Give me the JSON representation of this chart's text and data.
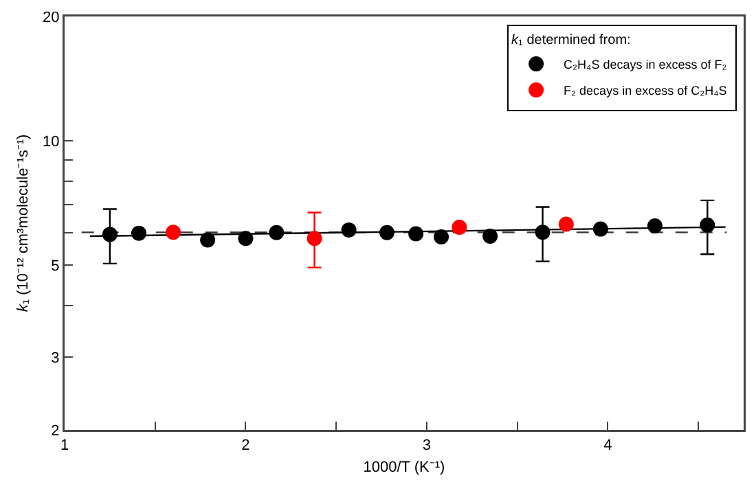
{
  "chart_data": {
    "type": "scatter",
    "xlabel": "1000/T (K⁻¹)",
    "ylabel": "k₁ (10⁻¹² cm³molecule⁻¹s⁻¹)",
    "legend_title": "k₁ determined from:",
    "legend": "top right",
    "marker": "circle",
    "grid": false,
    "log": "y",
    "xlim": [
      1,
      4.75
    ],
    "xticks": [
      1,
      {
        "value": 1.5,
        "label": null
      },
      2,
      {
        "value": 2.5,
        "label": null
      },
      3,
      {
        "value": 3.5,
        "label": null
      },
      4,
      {
        "value": 4.5,
        "label": null
      }
    ],
    "ylim": [
      2,
      20
    ],
    "yticks": [
      2,
      3,
      {
        "value": 4,
        "label": null
      },
      5,
      {
        "value": 6,
        "label": null
      },
      {
        "value": 7,
        "label": null
      },
      {
        "value": 8,
        "label": null
      },
      {
        "value": 9,
        "label": null
      },
      10,
      20
    ],
    "series": [
      {
        "name": "C₂H₄S decays in excess of F₂",
        "color": "#000000",
        "x": [
          1.25,
          1.41,
          1.79,
          2.0,
          2.17,
          2.57,
          2.78,
          2.94,
          3.08,
          3.35,
          3.64,
          3.96,
          4.26,
          4.55
        ],
        "values": [
          5.94,
          5.98,
          5.76,
          5.81,
          6.0,
          6.09,
          6.0,
          5.96,
          5.86,
          5.88,
          6.01,
          6.12,
          6.23,
          6.26
        ],
        "errors": [
          [
            5.05,
            6.84
          ],
          null,
          null,
          null,
          null,
          null,
          null,
          null,
          null,
          null,
          [
            5.11,
            6.92
          ],
          null,
          null,
          [
            5.32,
            7.18
          ]
        ]
      },
      {
        "name": "F₂ decays in excess of C₂H₄S",
        "color": "#ff0000",
        "x": [
          1.6,
          2.38,
          3.18,
          3.77
        ],
        "values": [
          6.01,
          5.81,
          6.18,
          6.29
        ],
        "errors": [
          null,
          [
            4.94,
            6.71
          ],
          null,
          null
        ]
      },
      {
        "type": "line",
        "color": "#000000",
        "line_style": "solid",
        "marker": "none",
        "x": [
          1.14,
          4.65
        ],
        "values": [
          5.88,
          6.19
        ]
      }
    ],
    "ref_lines": [
      {
        "axis": "y",
        "value": 6.01,
        "color": "#333333",
        "line_style": "dashed"
      }
    ]
  }
}
